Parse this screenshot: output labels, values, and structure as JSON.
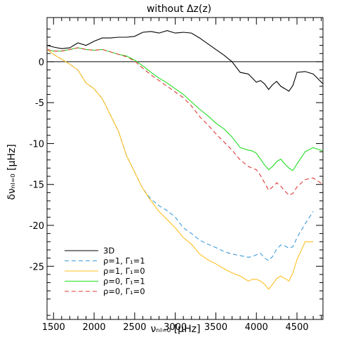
{
  "chart_data": {
    "type": "line",
    "title": "without Δz(z)",
    "xlabel": "νₙₗ₌₀ [μHz]",
    "ylabel": "δνₙₗ₌₀ [μHz]",
    "xlim": [
      1420,
      4820
    ],
    "ylim": [
      -31.5,
      5.4
    ],
    "xticks": [
      1500,
      2000,
      2500,
      3000,
      3500,
      4000,
      4500
    ],
    "yticks": [
      0,
      -5,
      -10,
      -15,
      -20,
      -25
    ],
    "grid": false,
    "legend_position": "bottom-left",
    "reference_line": 0,
    "series": [
      {
        "name": "3D",
        "color": "#000000",
        "style": "solid",
        "x": [
          1420,
          1500,
          1600,
          1700,
          1800,
          1900,
          2000,
          2100,
          2200,
          2300,
          2400,
          2500,
          2600,
          2700,
          2800,
          2900,
          3000,
          3100,
          3200,
          3300,
          3400,
          3500,
          3600,
          3700,
          3800,
          3900,
          4000,
          4050,
          4100,
          4150,
          4200,
          4250,
          4300,
          4350,
          4400,
          4450,
          4500,
          4600,
          4700,
          4820
        ],
        "y": [
          2.0,
          1.8,
          1.6,
          1.7,
          2.3,
          2.0,
          2.5,
          2.9,
          2.9,
          3.0,
          3.0,
          3.1,
          3.6,
          3.7,
          3.5,
          3.8,
          3.5,
          3.6,
          3.5,
          2.9,
          2.2,
          1.5,
          0.8,
          0.0,
          -1.3,
          -1.5,
          -2.5,
          -2.3,
          -2.7,
          -3.4,
          -2.8,
          -2.4,
          -3.0,
          -3.3,
          -3.6,
          -2.9,
          -1.3,
          -1.2,
          -1.5,
          -2.7
        ]
      },
      {
        "name": "ρ=1, Γ₁=1",
        "color": "#3d9bd8",
        "style": "dashed",
        "x": [
          1420,
          1500,
          1600,
          1700,
          1800,
          1900,
          2000,
          2100,
          2200,
          2300,
          2400,
          2500,
          2600,
          2700,
          2800,
          2900,
          3000,
          3100,
          3200,
          3300,
          3400,
          3500,
          3600,
          3700,
          3800,
          3900,
          3950,
          4000,
          4050,
          4100,
          4150,
          4200,
          4250,
          4300,
          4350,
          4400,
          4450,
          4500,
          4600,
          4700
        ],
        "y": [
          1.5,
          0.9,
          0.3,
          -0.3,
          -1.0,
          -2.6,
          -3.3,
          -4.5,
          -6.5,
          -8.5,
          -11.5,
          -13.5,
          -15.5,
          -16.8,
          -17.6,
          -18.2,
          -19.0,
          -20.3,
          -21.0,
          -21.8,
          -22.3,
          -22.7,
          -23.2,
          -23.5,
          -23.7,
          -23.9,
          -23.8,
          -23.6,
          -23.4,
          -24.0,
          -24.3,
          -23.8,
          -22.9,
          -22.4,
          -22.5,
          -22.8,
          -22.6,
          -21.5,
          -19.8,
          -18.3
        ]
      },
      {
        "name": "ρ=1, Γ₁=0",
        "color": "#ffc020",
        "style": "solid",
        "x": [
          1420,
          1500,
          1600,
          1700,
          1800,
          1900,
          2000,
          2100,
          2200,
          2300,
          2400,
          2500,
          2600,
          2700,
          2800,
          2900,
          3000,
          3100,
          3200,
          3300,
          3400,
          3500,
          3600,
          3700,
          3800,
          3900,
          3950,
          4000,
          4050,
          4100,
          4150,
          4200,
          4250,
          4300,
          4350,
          4400,
          4450,
          4500,
          4600,
          4700
        ],
        "y": [
          1.5,
          0.9,
          0.3,
          -0.3,
          -1.0,
          -2.6,
          -3.3,
          -4.5,
          -6.5,
          -8.5,
          -11.5,
          -13.5,
          -15.5,
          -17.0,
          -18.3,
          -19.3,
          -20.3,
          -21.5,
          -22.3,
          -23.5,
          -24.2,
          -24.7,
          -25.3,
          -25.8,
          -26.2,
          -26.8,
          -26.6,
          -26.6,
          -26.8,
          -27.2,
          -27.8,
          -27.2,
          -26.5,
          -26.2,
          -26.5,
          -26.8,
          -25.8,
          -24.2,
          -22.0,
          -22.0
        ]
      },
      {
        "name": "ρ=0, Γ₁=1",
        "color": "#22dd22",
        "style": "solid",
        "x": [
          1420,
          1500,
          1600,
          1700,
          1800,
          1900,
          2000,
          2100,
          2200,
          2300,
          2400,
          2500,
          2600,
          2700,
          2800,
          2900,
          3000,
          3100,
          3200,
          3300,
          3400,
          3500,
          3600,
          3700,
          3800,
          3900,
          3950,
          4000,
          4050,
          4100,
          4150,
          4200,
          4250,
          4300,
          4350,
          4400,
          4450,
          4500,
          4600,
          4700,
          4820
        ],
        "y": [
          1.5,
          1.3,
          1.3,
          1.5,
          1.7,
          1.5,
          1.4,
          1.5,
          1.2,
          0.9,
          0.7,
          0.2,
          -0.5,
          -1.3,
          -2.0,
          -2.6,
          -3.3,
          -4.0,
          -4.9,
          -5.8,
          -6.6,
          -7.5,
          -8.2,
          -9.2,
          -10.5,
          -10.8,
          -10.9,
          -11.2,
          -11.9,
          -12.6,
          -13.2,
          -12.8,
          -12.2,
          -11.9,
          -12.5,
          -13.0,
          -13.3,
          -12.5,
          -11.0,
          -10.5,
          -10.9
        ]
      },
      {
        "name": "ρ=0, Γ₁=0",
        "color": "#e23838",
        "style": "dashed",
        "x": [
          1420,
          1500,
          1600,
          1700,
          1800,
          1900,
          2000,
          2100,
          2200,
          2300,
          2400,
          2500,
          2600,
          2700,
          2800,
          2900,
          3000,
          3100,
          3200,
          3300,
          3400,
          3500,
          3600,
          3700,
          3800,
          3900,
          3950,
          4000,
          4050,
          4100,
          4150,
          4200,
          4250,
          4300,
          4350,
          4400,
          4450,
          4500,
          4600,
          4700,
          4820
        ],
        "y": [
          1.5,
          1.3,
          1.3,
          1.5,
          1.7,
          1.5,
          1.4,
          1.5,
          1.2,
          0.9,
          0.6,
          0.1,
          -0.8,
          -1.6,
          -2.3,
          -3.0,
          -3.7,
          -4.4,
          -5.4,
          -6.7,
          -7.7,
          -8.8,
          -9.8,
          -10.8,
          -12.0,
          -12.8,
          -13.0,
          -13.2,
          -13.9,
          -14.8,
          -15.7,
          -15.3,
          -14.8,
          -15.2,
          -15.8,
          -16.3,
          -16.1,
          -15.3,
          -14.4,
          -14.2,
          -15.0
        ]
      }
    ]
  }
}
